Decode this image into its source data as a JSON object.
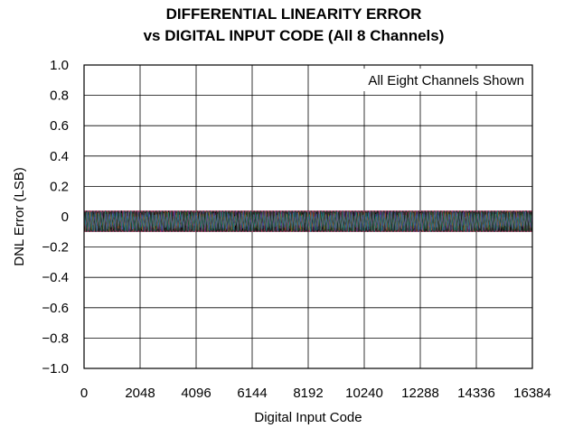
{
  "chart_data": {
    "type": "line",
    "title_line1": "DIFFERENTIAL LINEARITY ERROR",
    "title_line2": "vs DIGITAL INPUT CODE (All 8 Channels)",
    "xlabel": "Digital Input Code",
    "ylabel": "DNL Error (LSB)",
    "xlim": [
      0,
      16384
    ],
    "ylim": [
      -1.0,
      1.0
    ],
    "x_ticks": [
      0,
      2048,
      4096,
      6144,
      8192,
      10240,
      12288,
      14336,
      16384
    ],
    "x_tick_labels": [
      "0",
      "2048",
      "4096",
      "6144",
      "8192",
      "10240",
      "12288",
      "14336",
      "16384"
    ],
    "y_ticks": [
      1.0,
      0.8,
      0.6,
      0.4,
      0.2,
      0,
      -0.2,
      -0.4,
      -0.6,
      -0.8,
      -1.0
    ],
    "y_tick_labels": [
      "1.0",
      "0.8",
      "0.6",
      "0.4",
      "0.2",
      "0",
      "−0.2",
      "−0.4",
      "−0.6",
      "−0.8",
      "−1.0"
    ],
    "grid": true,
    "annotation": "All Eight Channels Shown",
    "annotation_position": "top-right",
    "dnl_band": {
      "upper": 0.04,
      "lower": -0.1
    },
    "series_colors": [
      "#000000",
      "#d23a6e",
      "#3a7fd2",
      "#2a8a3a",
      "#c07a1a",
      "#7a3ad2",
      "#1a9a9a",
      "#555555"
    ]
  }
}
